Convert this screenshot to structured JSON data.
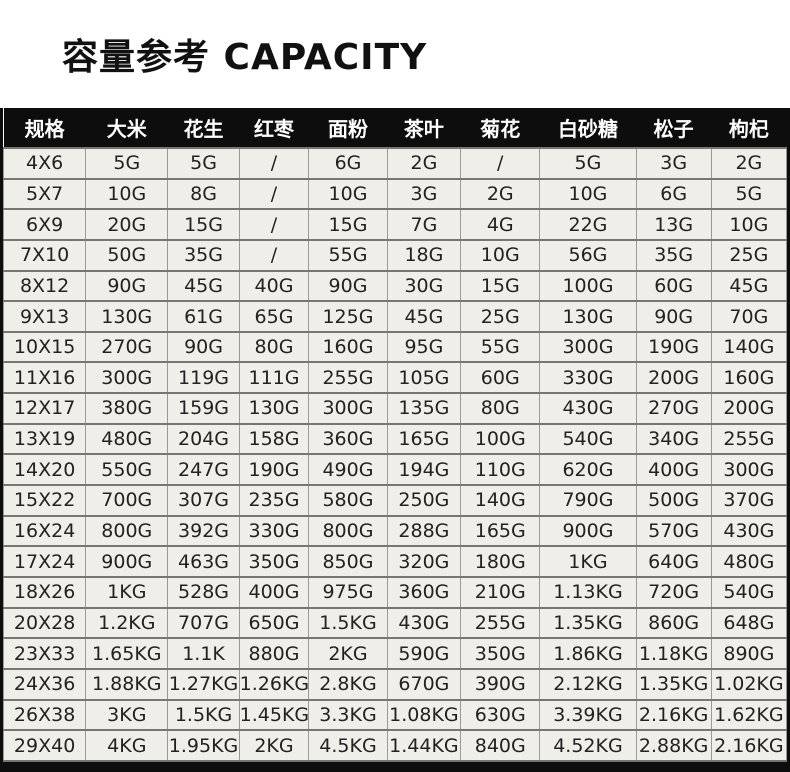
{
  "page_title": "容量参考 CAPACITY",
  "colors": {
    "title_text": "#111111",
    "header_bg": "#0d0d0d",
    "header_text": "#ffffff",
    "cell_bg": "#efeee9",
    "cell_text": "#222222",
    "grid_line_horizontal": "#777772",
    "grid_line_vertical": "#9a9a93",
    "frame": "#0d0d0d",
    "page_bg": "#ffffff"
  },
  "chart_data": {
    "type": "table",
    "title": "容量参考 CAPACITY",
    "columns": [
      "规格",
      "大米",
      "花生",
      "红枣",
      "面粉",
      "茶叶",
      "菊花",
      "白砂糖",
      "松子",
      "枸杞"
    ],
    "rows": [
      [
        "4X6",
        "5G",
        "5G",
        "/",
        "6G",
        "2G",
        "/",
        "5G",
        "3G",
        "2G"
      ],
      [
        "5X7",
        "10G",
        "8G",
        "/",
        "10G",
        "3G",
        "2G",
        "10G",
        "6G",
        "5G"
      ],
      [
        "6X9",
        "20G",
        "15G",
        "/",
        "15G",
        "7G",
        "4G",
        "22G",
        "13G",
        "10G"
      ],
      [
        "7X10",
        "50G",
        "35G",
        "/",
        "55G",
        "18G",
        "10G",
        "56G",
        "35G",
        "25G"
      ],
      [
        "8X12",
        "90G",
        "45G",
        "40G",
        "90G",
        "30G",
        "15G",
        "100G",
        "60G",
        "45G"
      ],
      [
        "9X13",
        "130G",
        "61G",
        "65G",
        "125G",
        "45G",
        "25G",
        "130G",
        "90G",
        "70G"
      ],
      [
        "10X15",
        "270G",
        "90G",
        "80G",
        "160G",
        "95G",
        "55G",
        "300G",
        "190G",
        "140G"
      ],
      [
        "11X16",
        "300G",
        "119G",
        "111G",
        "255G",
        "105G",
        "60G",
        "330G",
        "200G",
        "160G"
      ],
      [
        "12X17",
        "380G",
        "159G",
        "130G",
        "300G",
        "135G",
        "80G",
        "430G",
        "270G",
        "200G"
      ],
      [
        "13X19",
        "480G",
        "204G",
        "158G",
        "360G",
        "165G",
        "100G",
        "540G",
        "340G",
        "255G"
      ],
      [
        "14X20",
        "550G",
        "247G",
        "190G",
        "490G",
        "194G",
        "110G",
        "620G",
        "400G",
        "300G"
      ],
      [
        "15X22",
        "700G",
        "307G",
        "235G",
        "580G",
        "250G",
        "140G",
        "790G",
        "500G",
        "370G"
      ],
      [
        "16X24",
        "800G",
        "392G",
        "330G",
        "800G",
        "288G",
        "165G",
        "900G",
        "570G",
        "430G"
      ],
      [
        "17X24",
        "900G",
        "463G",
        "350G",
        "850G",
        "320G",
        "180G",
        "1KG",
        "640G",
        "480G"
      ],
      [
        "18X26",
        "1KG",
        "528G",
        "400G",
        "975G",
        "360G",
        "210G",
        "1.13KG",
        "720G",
        "540G"
      ],
      [
        "20X28",
        "1.2KG",
        "707G",
        "650G",
        "1.5KG",
        "430G",
        "255G",
        "1.35KG",
        "860G",
        "648G"
      ],
      [
        "23X33",
        "1.65KG",
        "1.1K",
        "880G",
        "2KG",
        "590G",
        "350G",
        "1.86KG",
        "1.18KG",
        "890G"
      ],
      [
        "24X36",
        "1.88KG",
        "1.27KG",
        "1.26KG",
        "2.8KG",
        "670G",
        "390G",
        "2.12KG",
        "1.35KG",
        "1.02KG"
      ],
      [
        "26X38",
        "3KG",
        "1.5KG",
        "1.45KG",
        "3.3KG",
        "1.08KG",
        "630G",
        "3.39KG",
        "2.16KG",
        "1.62KG"
      ],
      [
        "29X40",
        "4KG",
        "1.95KG",
        "2KG",
        "4.5KG",
        "1.44KG",
        "840G",
        "4.52KG",
        "2.88KG",
        "2.16KG"
      ]
    ]
  }
}
